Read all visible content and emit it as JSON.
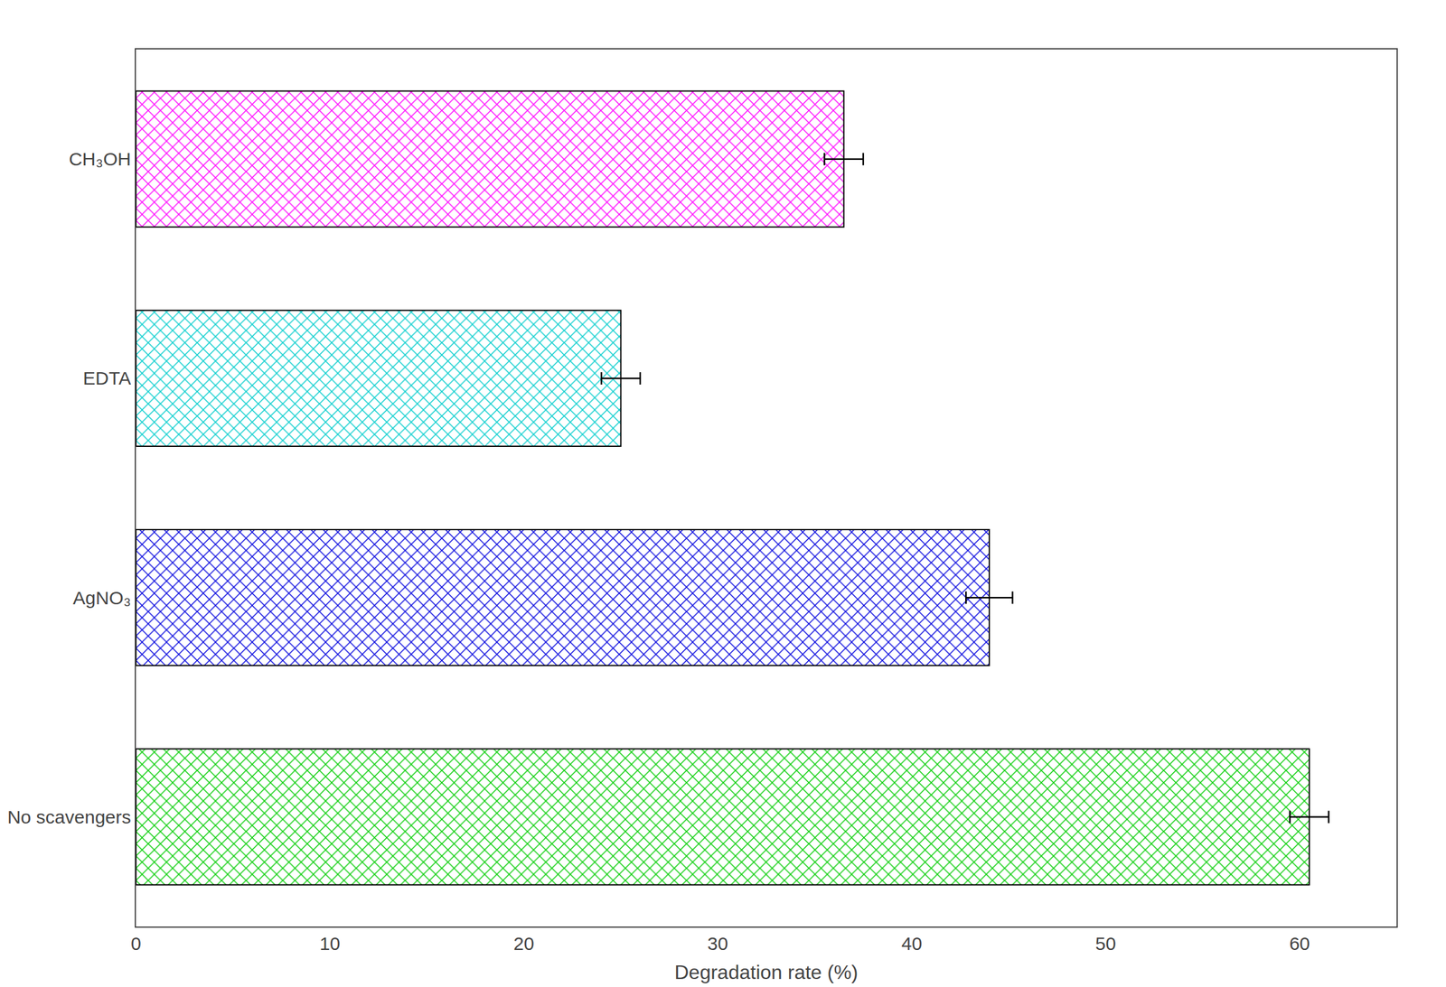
{
  "chart_data": {
    "type": "bar",
    "orientation": "horizontal",
    "categories": [
      "No scavengers",
      "AgNO₃",
      "EDTA",
      "CH₃OH"
    ],
    "values": [
      60.5,
      44.0,
      25.0,
      36.5
    ],
    "errors": [
      1.0,
      1.2,
      1.0,
      1.0
    ],
    "colors": [
      "#00cc00",
      "#0000dd",
      "#00cccc",
      "#ff00ff"
    ],
    "xlabel": "Degradation rate (%)",
    "xlim": [
      0,
      65
    ],
    "xticks": [
      0,
      10,
      20,
      30,
      40,
      50,
      60
    ],
    "grid": false
  }
}
